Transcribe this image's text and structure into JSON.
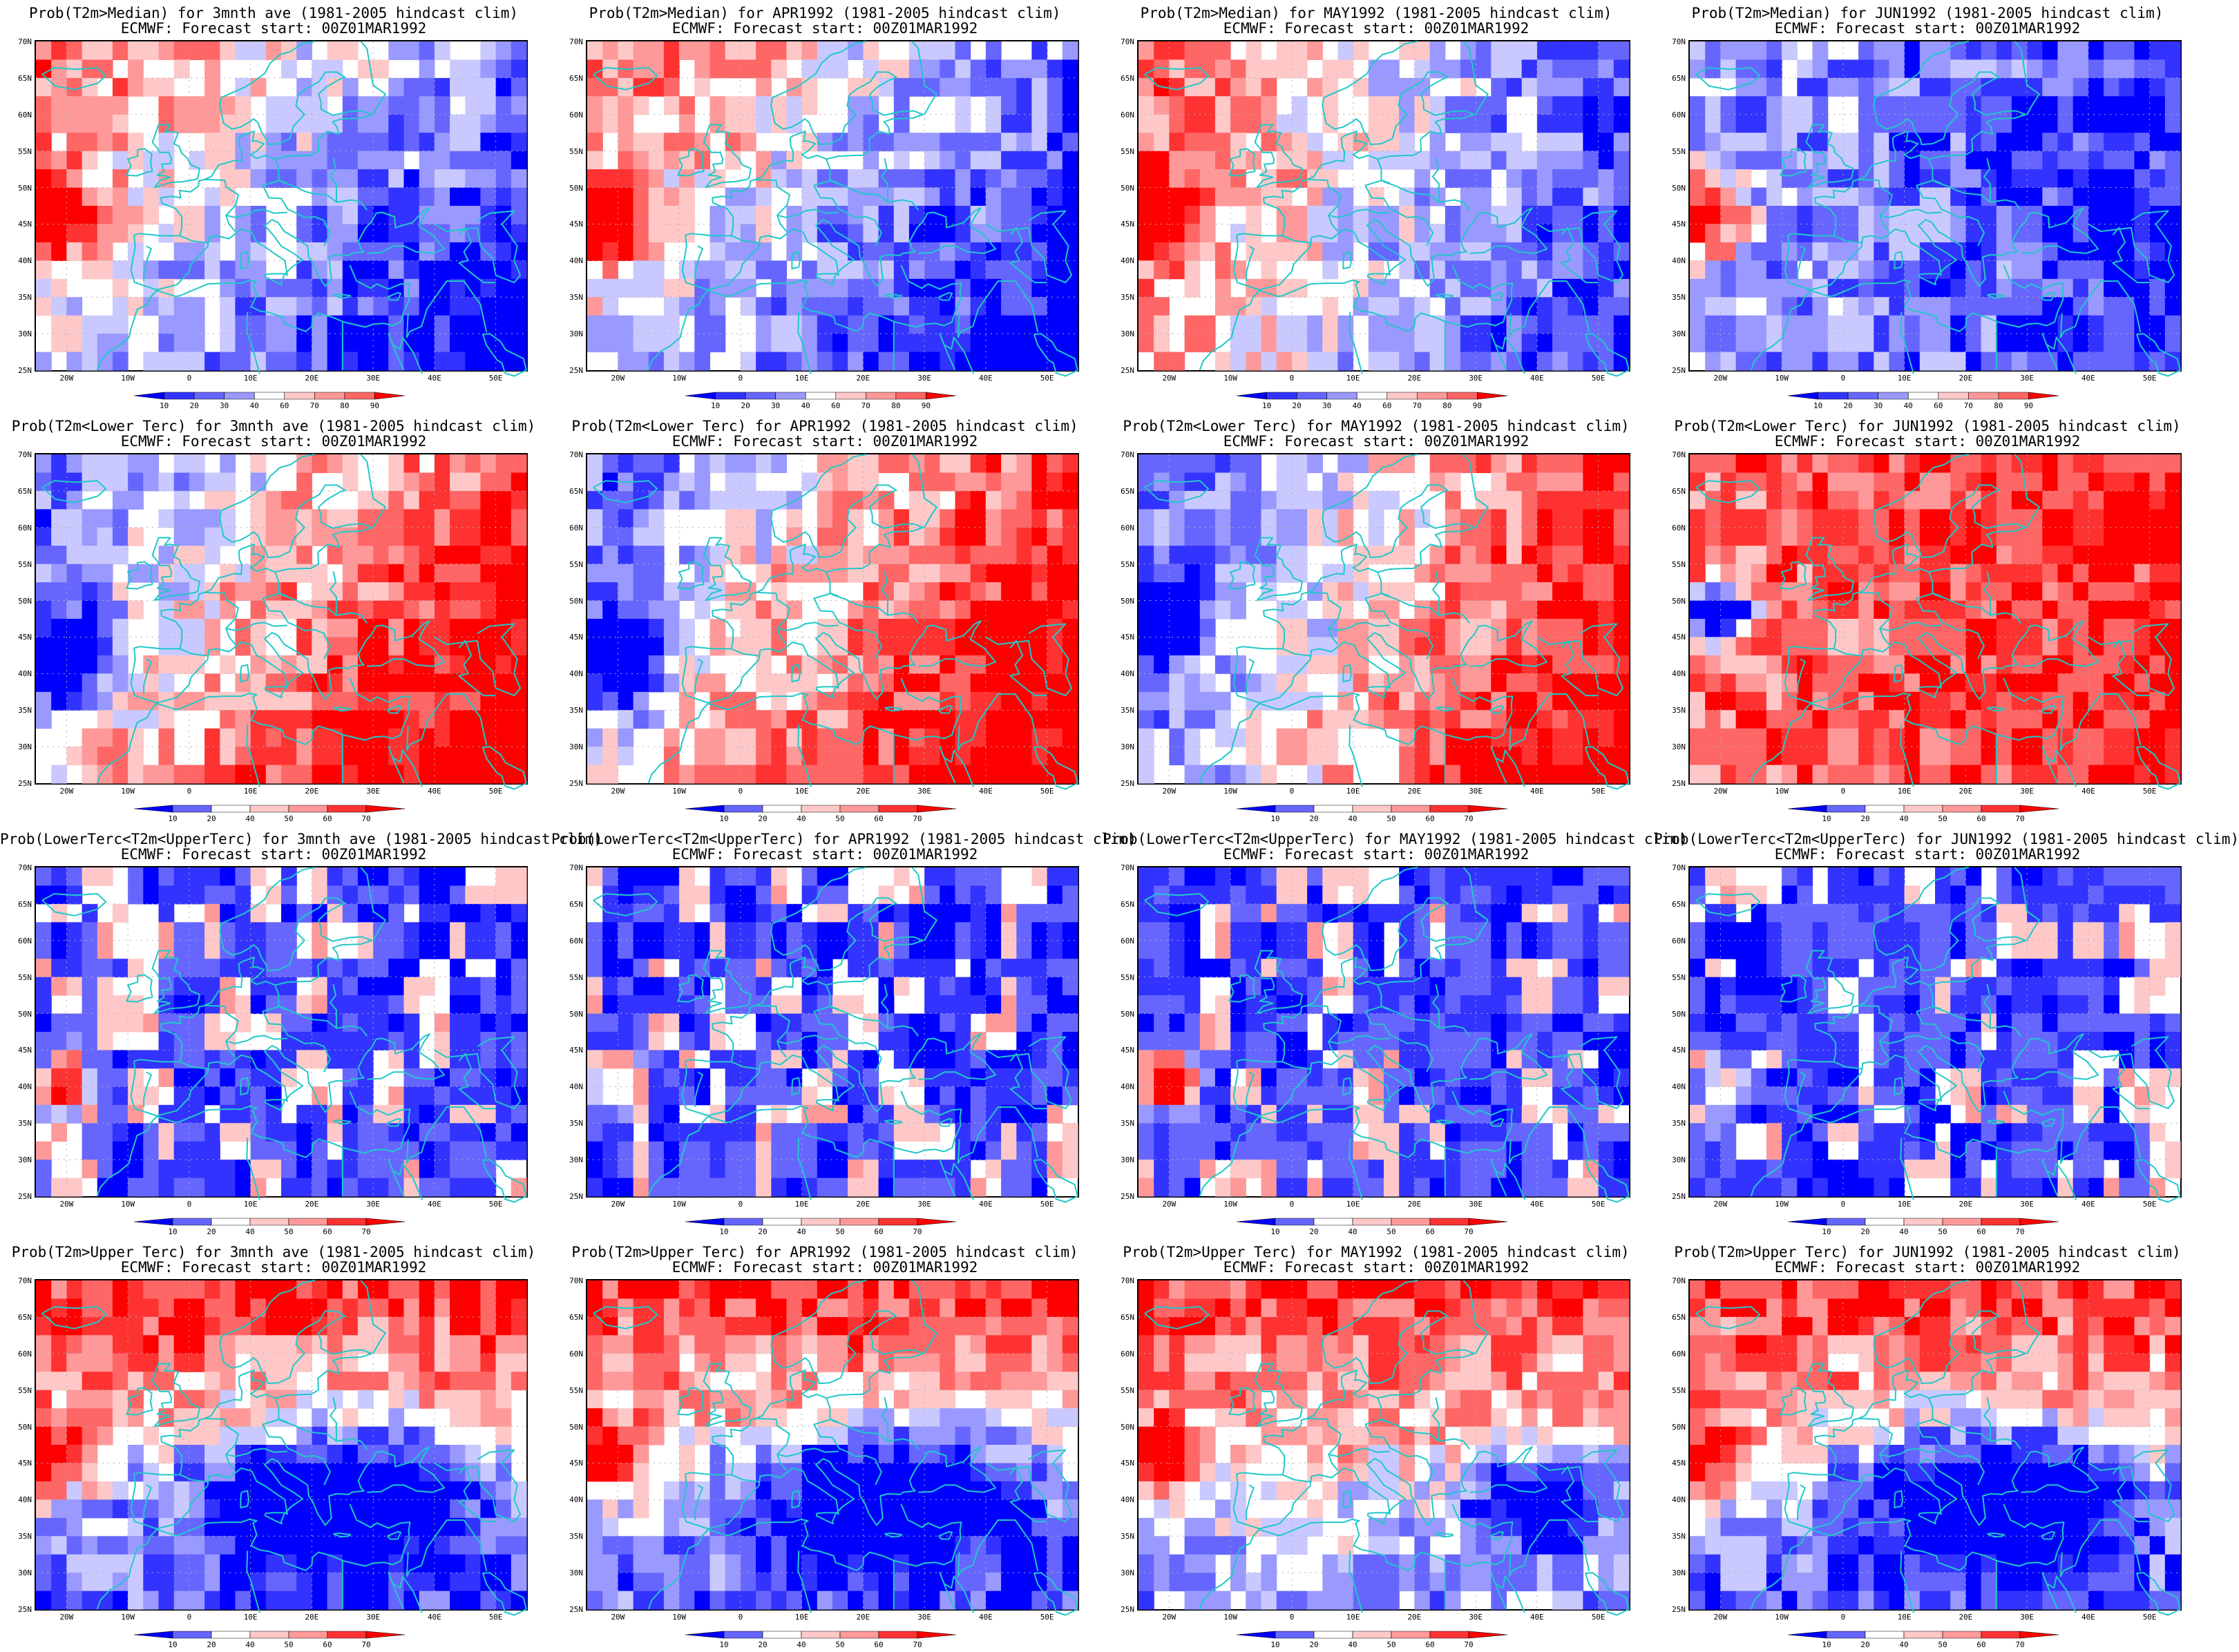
{
  "forecast_line": "ECMWF: Forecast start: 00Z01MAR1992",
  "lat_labels": [
    "70N",
    "65N",
    "60N",
    "55N",
    "50N",
    "45N",
    "40N",
    "35N",
    "30N",
    "25N"
  ],
  "lon_labels": [
    "20W",
    "10W",
    "0",
    "10E",
    "20E",
    "30E",
    "40E",
    "50E"
  ],
  "colors": {
    "blues": [
      "#0000ff",
      "#3333ff",
      "#6666ff",
      "#9999ff",
      "#c9c9ff"
    ],
    "reds": [
      "#ffc8c8",
      "#ff9999",
      "#ff6666",
      "#ff3232",
      "#ff0000"
    ],
    "coast": "#20c8c8",
    "grid": "#b0b0b0"
  },
  "colorbars": {
    "median": [
      "10",
      "20",
      "30",
      "40",
      "60",
      "70",
      "80",
      "90"
    ],
    "tercile": [
      "10",
      "20",
      "40",
      "50",
      "60",
      "70"
    ]
  },
  "rows": [
    {
      "key": "median",
      "panels": [
        {
          "title": "Prob(T2m>Median) for 3mnth ave (1981-2005 hindcast clim)",
          "pattern": "cold_se"
        },
        {
          "title": "Prob(T2m>Median) for APR1992 (1981-2005 hindcast clim)",
          "pattern": "cold_se"
        },
        {
          "title": "Prob(T2m>Median) for MAY1992 (1981-2005 hindcast clim)",
          "pattern": "cold_e"
        },
        {
          "title": "Prob(T2m>Median) for JUN1992 (1981-2005 hindcast clim)",
          "pattern": "cold_all"
        }
      ]
    },
    {
      "key": "tercile",
      "panels": [
        {
          "title": "Prob(T2m<Lower Terc) for 3mnth ave (1981-2005 hindcast clim)",
          "pattern": "hot_se"
        },
        {
          "title": "Prob(T2m<Lower Terc) for APR1992 (1981-2005 hindcast clim)",
          "pattern": "hot_se"
        },
        {
          "title": "Prob(T2m<Lower Terc) for MAY1992 (1981-2005 hindcast clim)",
          "pattern": "hot_e"
        },
        {
          "title": "Prob(T2m<Lower Terc) for JUN1992 (1981-2005 hindcast clim)",
          "pattern": "hot_all"
        }
      ]
    },
    {
      "key": "tercile",
      "panels": [
        {
          "title": "Prob(LowerTerc<T2m<UpperTerc) for 3mnth ave (1981-2005 hindcast clim)",
          "pattern": "blue_mid"
        },
        {
          "title": "Prob(LowerTerc<T2m<UpperTerc) for APR1992 (1981-2005 hindcast clim)",
          "pattern": "blue_mid"
        },
        {
          "title": "Prob(LowerTerc<T2m<UpperTerc) for MAY1992 (1981-2005 hindcast clim)",
          "pattern": "blue_mid"
        },
        {
          "title": "Prob(LowerTerc<T2m<UpperTerc) for JUN1992 (1981-2005 hindcast clim)",
          "pattern": "blue_mid"
        }
      ]
    },
    {
      "key": "tercile",
      "panels": [
        {
          "title": "Prob(T2m>Upper Terc) for 3mnth ave (1981-2005 hindcast clim)",
          "pattern": "upper"
        },
        {
          "title": "Prob(T2m>Upper Terc) for APR1992 (1981-2005 hindcast clim)",
          "pattern": "upper"
        },
        {
          "title": "Prob(T2m>Upper Terc) for MAY1992 (1981-2005 hindcast clim)",
          "pattern": "upper_mix"
        },
        {
          "title": "Prob(T2m>Upper Terc) for JUN1992 (1981-2005 hindcast clim)",
          "pattern": "upper"
        }
      ]
    }
  ]
}
